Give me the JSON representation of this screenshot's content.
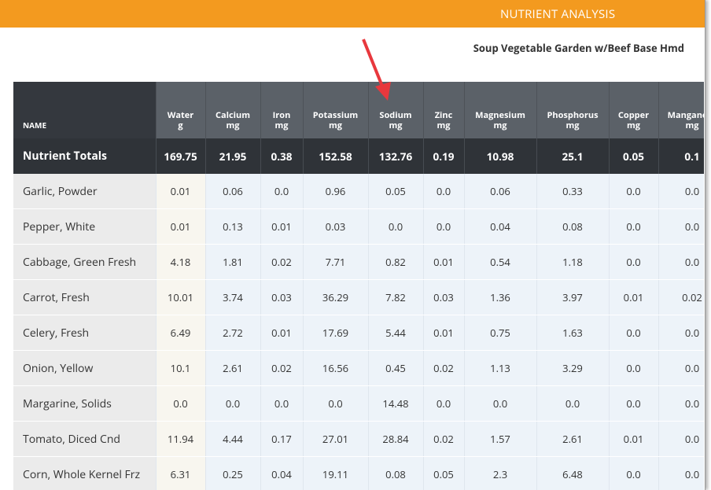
{
  "header": {
    "title": "NUTRIENT ANALYSIS"
  },
  "subtitle": "Soup Vegetable Garden w/Beef Base Hmd",
  "table": {
    "columns": [
      {
        "name": "NAME"
      },
      {
        "name": "Water",
        "unit": "g"
      },
      {
        "name": "Calcium",
        "unit": "mg"
      },
      {
        "name": "Iron",
        "unit": "mg"
      },
      {
        "name": "Potassium",
        "unit": "mg"
      },
      {
        "name": "Sodium",
        "unit": "mg"
      },
      {
        "name": "Zinc",
        "unit": "mg"
      },
      {
        "name": "Magnesium",
        "unit": "mg"
      },
      {
        "name": "Phosphorus",
        "unit": "mg"
      },
      {
        "name": "Copper",
        "unit": "mg"
      },
      {
        "name": "Manganese",
        "unit": "mg"
      }
    ],
    "totals": {
      "label": "Nutrient Totals",
      "values": [
        "169.75",
        "21.95",
        "0.38",
        "152.58",
        "132.76",
        "0.19",
        "10.98",
        "25.1",
        "0.05",
        "0.1"
      ]
    },
    "rows": [
      {
        "name": "Garlic, Powder",
        "values": [
          "0.01",
          "0.06",
          "0.0",
          "0.96",
          "0.05",
          "0.0",
          "0.06",
          "0.33",
          "0.0",
          "0.0"
        ]
      },
      {
        "name": "Pepper, White",
        "values": [
          "0.01",
          "0.13",
          "0.01",
          "0.03",
          "0.0",
          "0.0",
          "0.04",
          "0.08",
          "0.0",
          "0.0"
        ]
      },
      {
        "name": "Cabbage, Green Fresh",
        "values": [
          "4.18",
          "1.81",
          "0.02",
          "7.71",
          "0.82",
          "0.01",
          "0.54",
          "1.18",
          "0.0",
          "0.0"
        ]
      },
      {
        "name": "Carrot, Fresh",
        "values": [
          "10.01",
          "3.74",
          "0.03",
          "36.29",
          "7.82",
          "0.03",
          "1.36",
          "3.97",
          "0.01",
          "0.02"
        ]
      },
      {
        "name": "Celery, Fresh",
        "values": [
          "6.49",
          "2.72",
          "0.01",
          "17.69",
          "5.44",
          "0.01",
          "0.75",
          "1.63",
          "0.0",
          "0.0"
        ]
      },
      {
        "name": "Onion, Yellow",
        "values": [
          "10.1",
          "2.61",
          "0.02",
          "16.56",
          "0.45",
          "0.02",
          "1.13",
          "3.29",
          "0.0",
          "0.0"
        ]
      },
      {
        "name": "Margarine, Solids",
        "values": [
          "0.0",
          "0.0",
          "0.0",
          "0.0",
          "14.48",
          "0.0",
          "0.0",
          "0.0",
          "0.0",
          "0.0"
        ]
      },
      {
        "name": "Tomato, Diced Cnd",
        "values": [
          "11.94",
          "4.44",
          "0.17",
          "27.01",
          "28.84",
          "0.02",
          "1.57",
          "2.61",
          "0.01",
          "0.0"
        ]
      },
      {
        "name": "Corn, Whole Kernel Frz",
        "values": [
          "6.31",
          "0.25",
          "0.04",
          "19.11",
          "0.08",
          "0.05",
          "2.3",
          "6.48",
          "0.0",
          "0.0"
        ]
      }
    ]
  }
}
